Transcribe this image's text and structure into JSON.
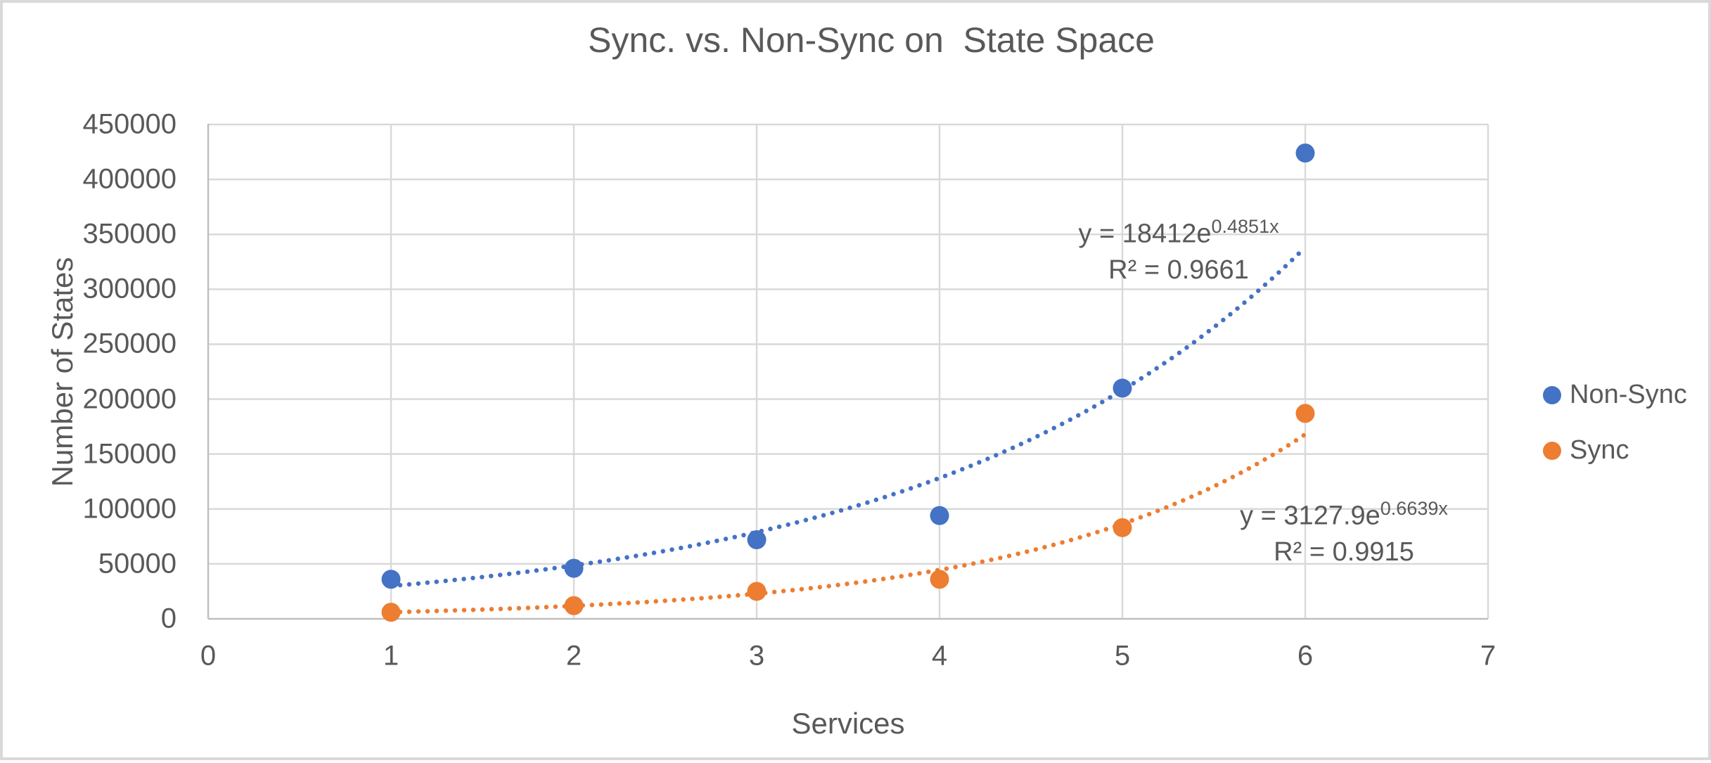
{
  "colors": {
    "non_sync": "#4472C4",
    "sync": "#ED7D31",
    "gridline": "#D9D9D9",
    "axis_line": "#BFBFBF",
    "text": "#595959",
    "frame_border": "#D9D9D9"
  },
  "annotations": [
    {
      "prefix": "y = 18412e",
      "exponent": "0.4851x",
      "r2": "R² = 0.9661"
    },
    {
      "prefix": "y = 3127.9e",
      "exponent": "0.6639x",
      "r2": "R² = 0.9915"
    }
  ],
  "chart_data": {
    "type": "scatter",
    "title": "Sync. vs. Non-Sync on  State Space",
    "xlabel": "Services",
    "ylabel": "Number of States",
    "xlim": [
      0,
      7
    ],
    "ylim": [
      0,
      450000
    ],
    "xticks": [
      0,
      1,
      2,
      3,
      4,
      5,
      6,
      7
    ],
    "yticks": [
      0,
      50000,
      100000,
      150000,
      200000,
      250000,
      300000,
      350000,
      400000,
      450000
    ],
    "grid": true,
    "legend_position": "right",
    "x": [
      1,
      2,
      3,
      4,
      5,
      6
    ],
    "series": [
      {
        "name": "Non-Sync",
        "color": "#4472C4",
        "values": [
          36000,
          46000,
          72000,
          94000,
          210000,
          424000
        ],
        "trendline": {
          "type": "exponential",
          "a": 18412,
          "b": 0.4851,
          "x_range": [
            1,
            6
          ],
          "equation": "y = 18412e^0.4851x",
          "r2": 0.9661,
          "style": "dotted"
        }
      },
      {
        "name": "Sync",
        "color": "#ED7D31",
        "values": [
          6000,
          12000,
          25000,
          36000,
          83000,
          187000
        ],
        "trendline": {
          "type": "exponential",
          "a": 3127.9,
          "b": 0.6639,
          "x_range": [
            1,
            6
          ],
          "equation": "y = 3127.9e^0.6639x",
          "r2": 0.9915,
          "style": "dotted"
        }
      }
    ]
  }
}
